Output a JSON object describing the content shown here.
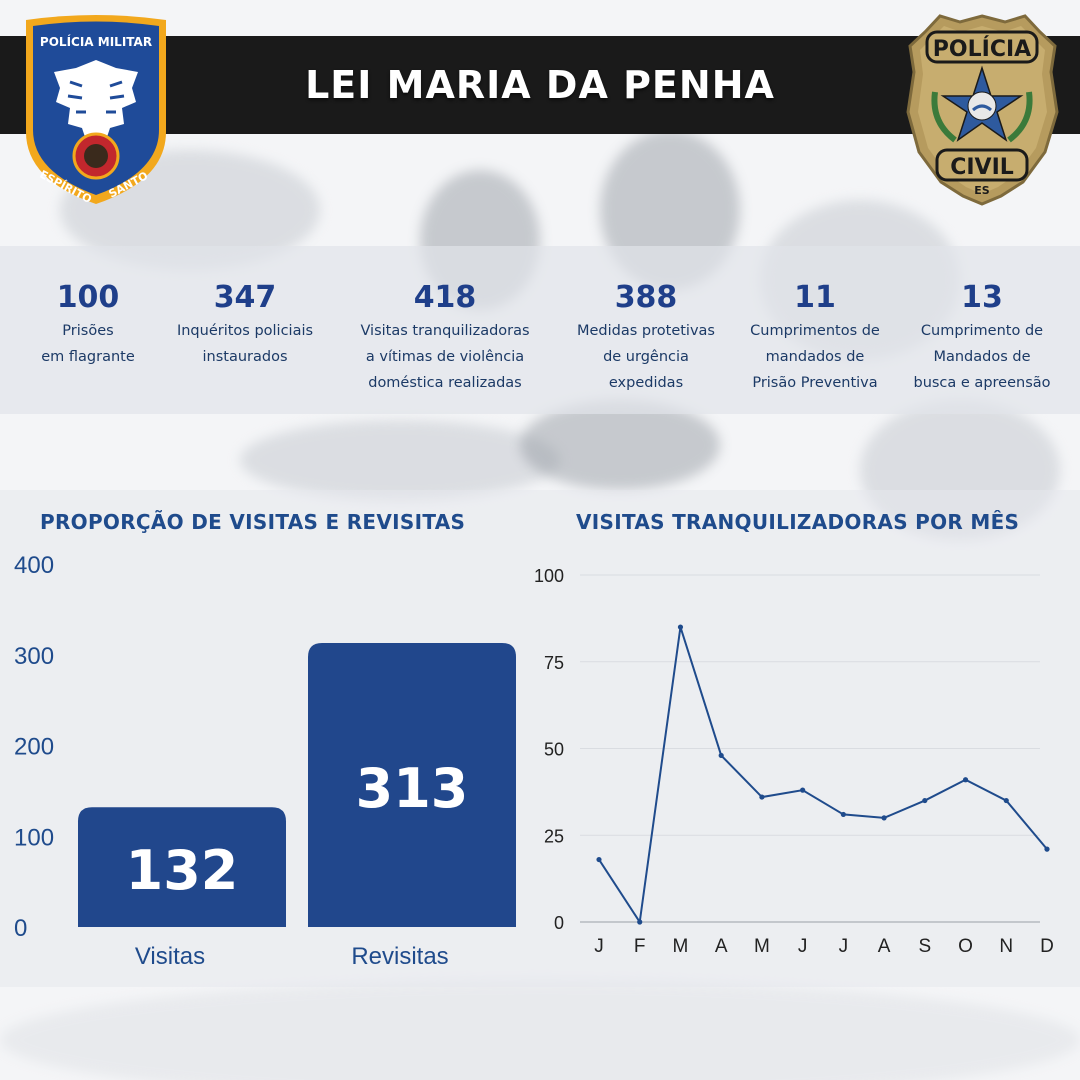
{
  "header": {
    "title": "LEI MARIA DA PENHA"
  },
  "badges": {
    "pm": {
      "top": "POLÍCIA MILITAR",
      "bottom_left": "ESPÍRITO",
      "bottom_right": "SANTO"
    },
    "pc": {
      "top": "POLÍCIA",
      "middle": "CIVIL",
      "bottom": "ES"
    }
  },
  "stats": [
    {
      "value": "100",
      "label": "Prisões\nem flagrante"
    },
    {
      "value": "347",
      "label": "Inquéritos policiais\ninstaurados"
    },
    {
      "value": "418",
      "label": "Visitas tranquilizadoras\na vítimas de violência\ndoméstica realizadas"
    },
    {
      "value": "388",
      "label": "Medidas protetivas\nde urgência\nexpedidas"
    },
    {
      "value": "11",
      "label": "Cumprimentos de\nmandados de\nPrisão Preventiva"
    },
    {
      "value": "13",
      "label": "Cumprimento de\nMandados de\nbusca e apreensão"
    }
  ],
  "colors": {
    "primary": "#21478c",
    "title": "#1f4b8c",
    "header_bg": "#1a1a1a",
    "line": "#1f4b8c",
    "grid": "#d9dce1"
  },
  "chart_data": [
    {
      "type": "bar",
      "title": "PROPORÇÃO DE VISITAS E REVISITAS",
      "categories": [
        "Visitas",
        "Revisitas"
      ],
      "values": [
        132,
        313
      ],
      "ylim": [
        0,
        400
      ],
      "yticks": [
        0,
        100,
        200,
        300,
        400
      ],
      "data_labels": true,
      "grid": false
    },
    {
      "type": "line",
      "title": "VISITAS TRANQUILIZADORAS POR MÊS",
      "categories": [
        "J",
        "F",
        "M",
        "A",
        "M",
        "J",
        "J",
        "A",
        "S",
        "O",
        "N",
        "D"
      ],
      "values": [
        18,
        0,
        85,
        48,
        36,
        38,
        31,
        30,
        35,
        41,
        35,
        21
      ],
      "ylim": [
        0,
        100
      ],
      "yticks": [
        0,
        25,
        50,
        75,
        100
      ],
      "grid": true
    }
  ]
}
